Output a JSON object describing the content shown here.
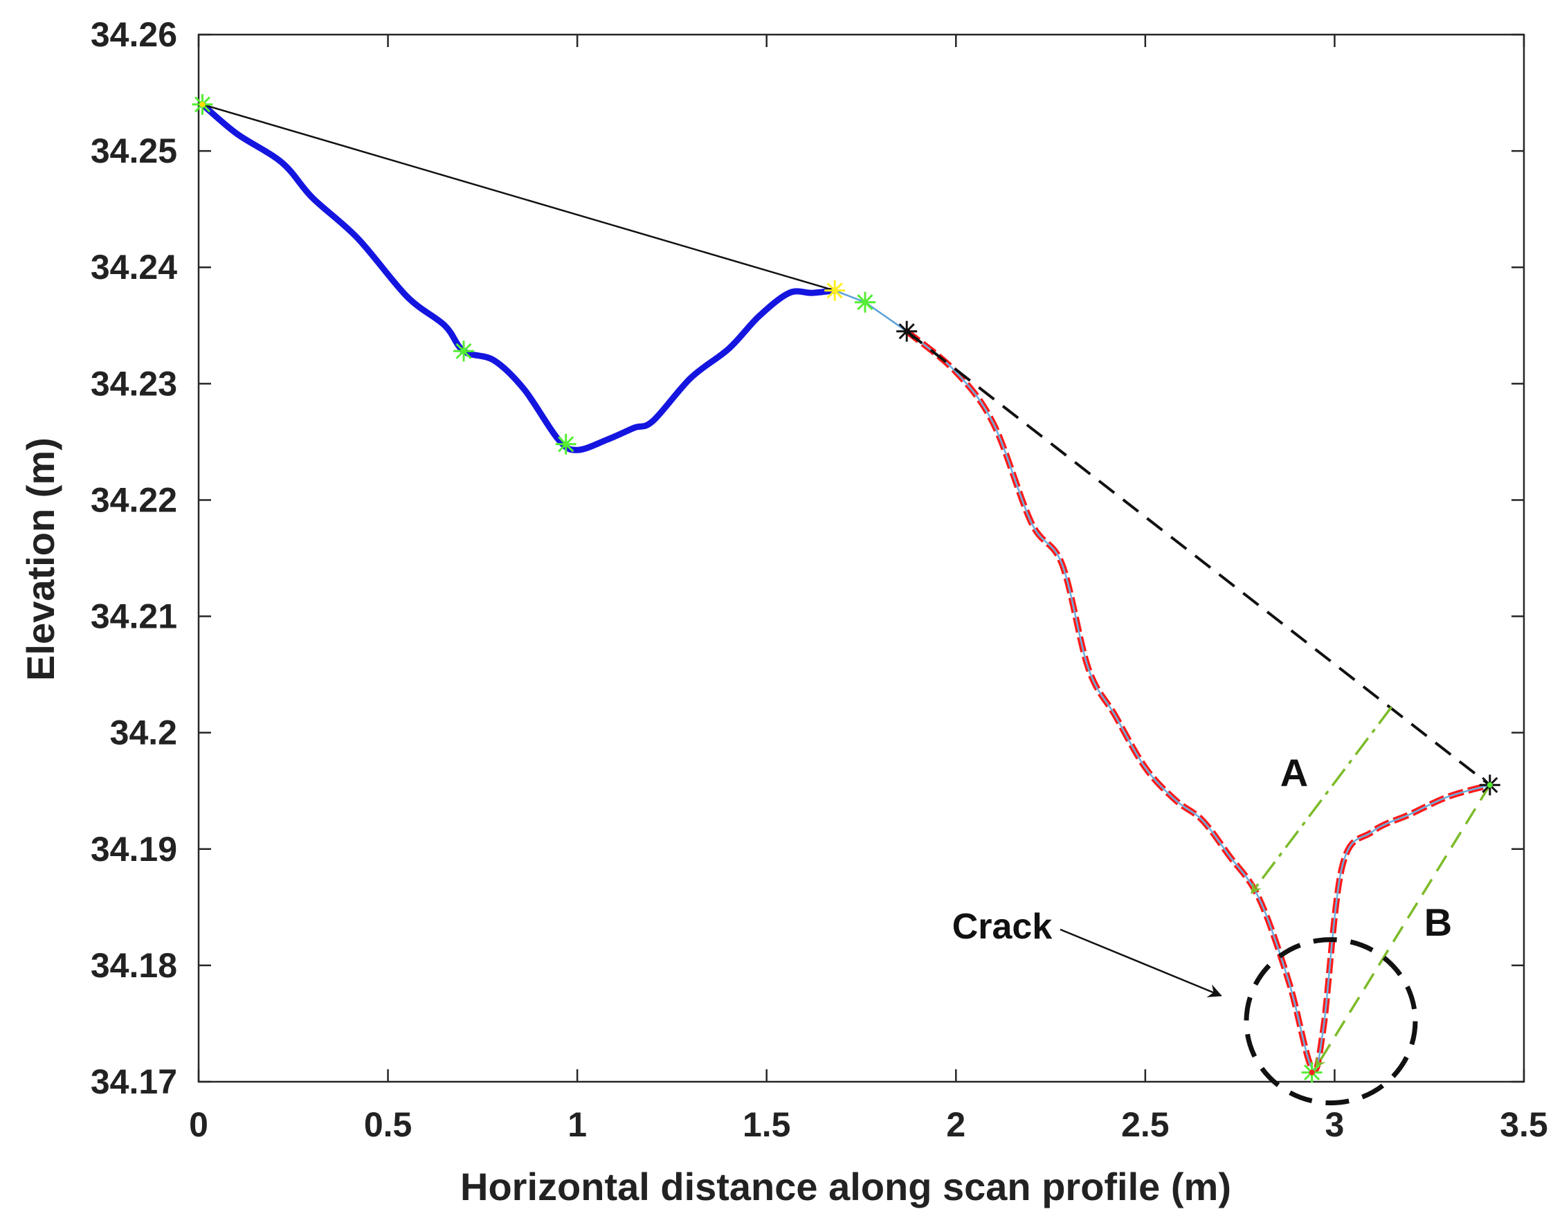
{
  "chart_data": {
    "type": "line",
    "title": "",
    "xlabel": "Horizontal distance along scan profile (m)",
    "ylabel": "Elevation (m)",
    "xlim": [
      0,
      3.5
    ],
    "ylim": [
      34.17,
      34.26
    ],
    "grid": false,
    "x_ticks": [
      {
        "value": 0,
        "label": "0"
      },
      {
        "value": 0.5,
        "label": "0.5"
      },
      {
        "value": 1,
        "label": "1"
      },
      {
        "value": 1.5,
        "label": "1.5"
      },
      {
        "value": 2,
        "label": "2"
      },
      {
        "value": 2.5,
        "label": "2.5"
      },
      {
        "value": 3,
        "label": "3"
      },
      {
        "value": 3.5,
        "label": "3.5"
      }
    ],
    "y_ticks": [
      {
        "value": 34.17,
        "label": "34.17"
      },
      {
        "value": 34.18,
        "label": "34.18"
      },
      {
        "value": 34.19,
        "label": "34.19"
      },
      {
        "value": 34.2,
        "label": "34.2"
      },
      {
        "value": 34.21,
        "label": "34.21"
      },
      {
        "value": 34.22,
        "label": "34.22"
      },
      {
        "value": 34.23,
        "label": "34.23"
      },
      {
        "value": 34.24,
        "label": "34.24"
      },
      {
        "value": 34.25,
        "label": "34.25"
      },
      {
        "value": 34.26,
        "label": "34.26"
      }
    ],
    "series": [
      {
        "name": "profile-depression",
        "style": "solid",
        "color": "#1515e0",
        "x": [
          0.01,
          0.1,
          0.22,
          0.3,
          0.42,
          0.55,
          0.65,
          0.7,
          0.78,
          0.86,
          0.95,
          1.0,
          1.08,
          1.15,
          1.2,
          1.3,
          1.4,
          1.48,
          1.56,
          1.62,
          1.68
        ],
        "y": [
          34.254,
          34.2515,
          34.249,
          34.246,
          34.2425,
          34.2375,
          34.235,
          34.2328,
          34.232,
          34.2295,
          34.2252,
          34.2243,
          34.2252,
          34.2262,
          34.2268,
          34.2305,
          34.233,
          34.2358,
          34.2378,
          34.2378,
          34.238
        ]
      },
      {
        "name": "profile-connector",
        "style": "thin",
        "color": "#5aa0d8",
        "x": [
          1.68,
          1.76,
          1.87
        ],
        "y": [
          34.238,
          34.237,
          34.2345
        ]
      },
      {
        "name": "profile-crack",
        "style": "dashed",
        "color": "#ff1a1a",
        "x": [
          1.87,
          2.0,
          2.1,
          2.2,
          2.28,
          2.35,
          2.42,
          2.5,
          2.58,
          2.65,
          2.72,
          2.8,
          2.88,
          2.94,
          2.97,
          3.02,
          3.1,
          3.2,
          3.3,
          3.41
        ],
        "y": [
          34.2345,
          34.231,
          34.2265,
          34.218,
          34.2145,
          34.2055,
          34.2015,
          34.197,
          34.1942,
          34.1925,
          34.1895,
          34.1858,
          34.1785,
          34.1712,
          34.1745,
          34.1885,
          34.1915,
          34.193,
          34.1945,
          34.1955
        ]
      },
      {
        "name": "hull-segment-1",
        "style": "thin",
        "color": "#111111",
        "x": [
          0.01,
          1.68
        ],
        "y": [
          34.254,
          34.238
        ]
      },
      {
        "name": "hull-segment-2",
        "style": "long-dash",
        "color": "#111111",
        "x": [
          1.87,
          3.41
        ],
        "y": [
          34.2345,
          34.1955
        ]
      }
    ],
    "markers": [
      {
        "name": "marker-start",
        "x": 0.01,
        "y": 34.254,
        "color": "#55ee33",
        "center": "#ffdd00"
      },
      {
        "name": "marker-inflection",
        "x": 0.7,
        "y": 34.2328,
        "color": "#55ee33",
        "center": "#55ee33"
      },
      {
        "name": "marker-local-min",
        "x": 0.97,
        "y": 34.2248,
        "color": "#55ee33",
        "center": "#55ee33"
      },
      {
        "name": "marker-peak",
        "x": 1.68,
        "y": 34.238,
        "color": "#ffee22",
        "center": "#ffee22"
      },
      {
        "name": "marker-cluster",
        "x": 1.76,
        "y": 34.237,
        "color": "#55ee33",
        "center": "#55ee33"
      },
      {
        "name": "marker-crack-start",
        "x": 1.87,
        "y": 34.2345,
        "color": "#111111",
        "center": "#111111"
      },
      {
        "name": "marker-crack-end",
        "x": 3.41,
        "y": 34.1955,
        "color": "#111111",
        "center": "#55ee33"
      },
      {
        "name": "marker-crack-bottom",
        "x": 2.94,
        "y": 34.1708,
        "color": "#55ee33",
        "center": "#ff2222"
      }
    ],
    "annotations": {
      "arrow_a": {
        "label": "A",
        "from": [
          3.15,
          34.2022
        ],
        "to": [
          2.78,
          34.1862
        ]
      },
      "arrow_b": {
        "label": "B",
        "from": [
          3.41,
          34.1955
        ],
        "to": [
          2.95,
          34.1712
        ]
      },
      "crack": {
        "label": "Crack",
        "circle_center": [
          2.99,
          34.1752
        ],
        "arrow_to": [
          2.7,
          34.1774
        ]
      }
    }
  }
}
